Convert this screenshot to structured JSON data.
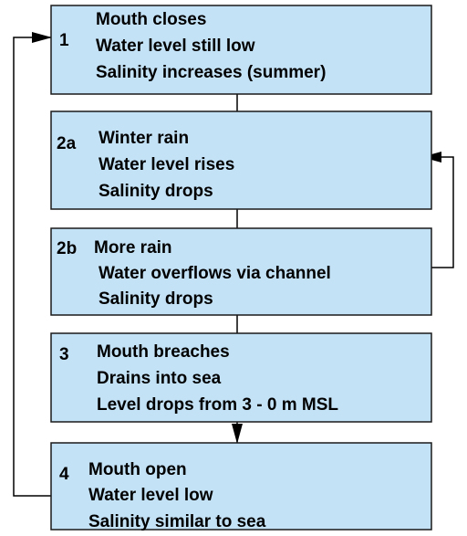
{
  "nodes": [
    {
      "id": "1",
      "lines": [
        "Mouth closes",
        "Water level still low",
        "Salinity increases (summer)"
      ]
    },
    {
      "id": "2a",
      "lines": [
        "Winter rain",
        "Water level rises",
        "Salinity drops"
      ]
    },
    {
      "id": "2b",
      "lines": [
        "More rain",
        "Water overflows via channel",
        "Salinity drops"
      ]
    },
    {
      "id": "3",
      "lines": [
        "Mouth breaches",
        "Drains into sea",
        "Level drops from 3 - 0 m MSL"
      ]
    },
    {
      "id": "4",
      "lines": [
        "Mouth open",
        "Water level low",
        "Salinity similar to sea"
      ]
    }
  ]
}
